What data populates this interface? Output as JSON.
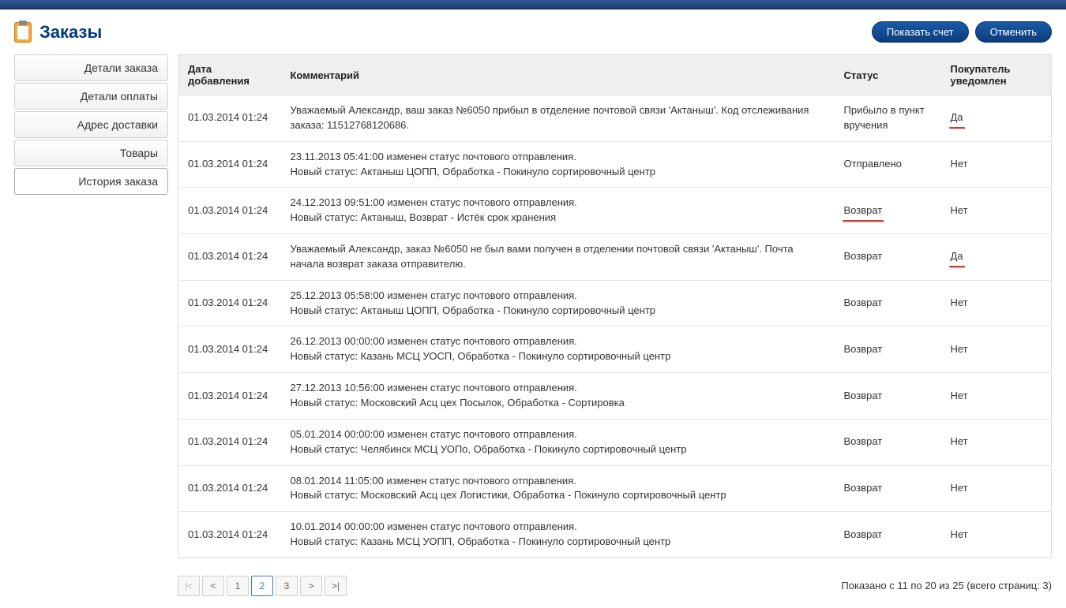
{
  "page": {
    "title": "Заказы",
    "buttons": {
      "show_invoice": "Показать счет",
      "cancel": "Отменить"
    }
  },
  "sidebar": {
    "items": [
      {
        "label": "Детали заказа",
        "active": false
      },
      {
        "label": "Детали оплаты",
        "active": false
      },
      {
        "label": "Адрес доставки",
        "active": false
      },
      {
        "label": "Товары",
        "active": false
      },
      {
        "label": "История заказа",
        "active": true
      }
    ]
  },
  "table": {
    "headers": {
      "date": "Дата добавления",
      "comment": "Комментарий",
      "status": "Статус",
      "notified": "Покупатель уведомлен"
    },
    "rows": [
      {
        "date": "01.03.2014 01:24",
        "comment": "Уважаемый Александр, ваш заказ №6050 прибыл в отделение почтовой связи 'Актаныш'. Код отслеживания заказа: 11512768120686.",
        "status": "Прибыло в пункт вручения",
        "status_underline": false,
        "notified": "Да",
        "notified_underline": true
      },
      {
        "date": "01.03.2014 01:24",
        "comment": "23.11.2013 05:41:00 изменен статус почтового отправления.\nНовый статус: Актаныш ЦОПП, Обработка - Покинуло сортировочный центр",
        "status": "Отправлено",
        "status_underline": false,
        "notified": "Нет",
        "notified_underline": false
      },
      {
        "date": "01.03.2014 01:24",
        "comment": "24.12.2013 09:51:00 изменен статус почтового отправления.\nНовый статус: Актаныш, Возврат - Истёк срок хранения",
        "status": "Возврат",
        "status_underline": true,
        "notified": "Нет",
        "notified_underline": false
      },
      {
        "date": "01.03.2014 01:24",
        "comment": "Уважаемый Александр, заказ №6050 не был вами получен в отделении почтовой связи 'Актаныш'. Почта начала возврат заказа отправителю.",
        "status": "Возврат",
        "status_underline": false,
        "notified": "Да",
        "notified_underline": true
      },
      {
        "date": "01.03.2014 01:24",
        "comment": "25.12.2013 05:58:00 изменен статус почтового отправления.\nНовый статус: Актаныш ЦОПП, Обработка - Покинуло сортировочный центр",
        "status": "Возврат",
        "status_underline": false,
        "notified": "Нет",
        "notified_underline": false
      },
      {
        "date": "01.03.2014 01:24",
        "comment": "26.12.2013 00:00:00 изменен статус почтового отправления.\nНовый статус: Казань МСЦ УОСП, Обработка - Покинуло сортировочный центр",
        "status": "Возврат",
        "status_underline": false,
        "notified": "Нет",
        "notified_underline": false
      },
      {
        "date": "01.03.2014 01:24",
        "comment": "27.12.2013 10:56:00 изменен статус почтового отправления.\nНовый статус: Московский Асц цех Посылок, Обработка - Сортировка",
        "status": "Возврат",
        "status_underline": false,
        "notified": "Нет",
        "notified_underline": false
      },
      {
        "date": "01.03.2014 01:24",
        "comment": "05.01.2014 00:00:00 изменен статус почтового отправления.\nНовый статус: Челябинск МСЦ УОПо, Обработка - Покинуло сортировочный центр",
        "status": "Возврат",
        "status_underline": false,
        "notified": "Нет",
        "notified_underline": false
      },
      {
        "date": "01.03.2014 01:24",
        "comment": "08.01.2014 11:05:00 изменен статус почтового отправления.\nНовый статус: Московский Асц цех Логистики, Обработка - Покинуло сортировочный центр",
        "status": "Возврат",
        "status_underline": false,
        "notified": "Нет",
        "notified_underline": false
      },
      {
        "date": "01.03.2014 01:24",
        "comment": "10.01.2014 00:00:00 изменен статус почтового отправления.\nНовый статус: Казань МСЦ УОПП, Обработка - Покинуло сортировочный центр",
        "status": "Возврат",
        "status_underline": false,
        "notified": "Нет",
        "notified_underline": false
      }
    ]
  },
  "pagination": {
    "first": "|<",
    "prev": "<",
    "pages": [
      "1",
      "2",
      "3"
    ],
    "active_page": "2",
    "next": ">",
    "last": ">|",
    "info": "Показано с 11 по 20 из 25 (всего страниц: 3)"
  }
}
